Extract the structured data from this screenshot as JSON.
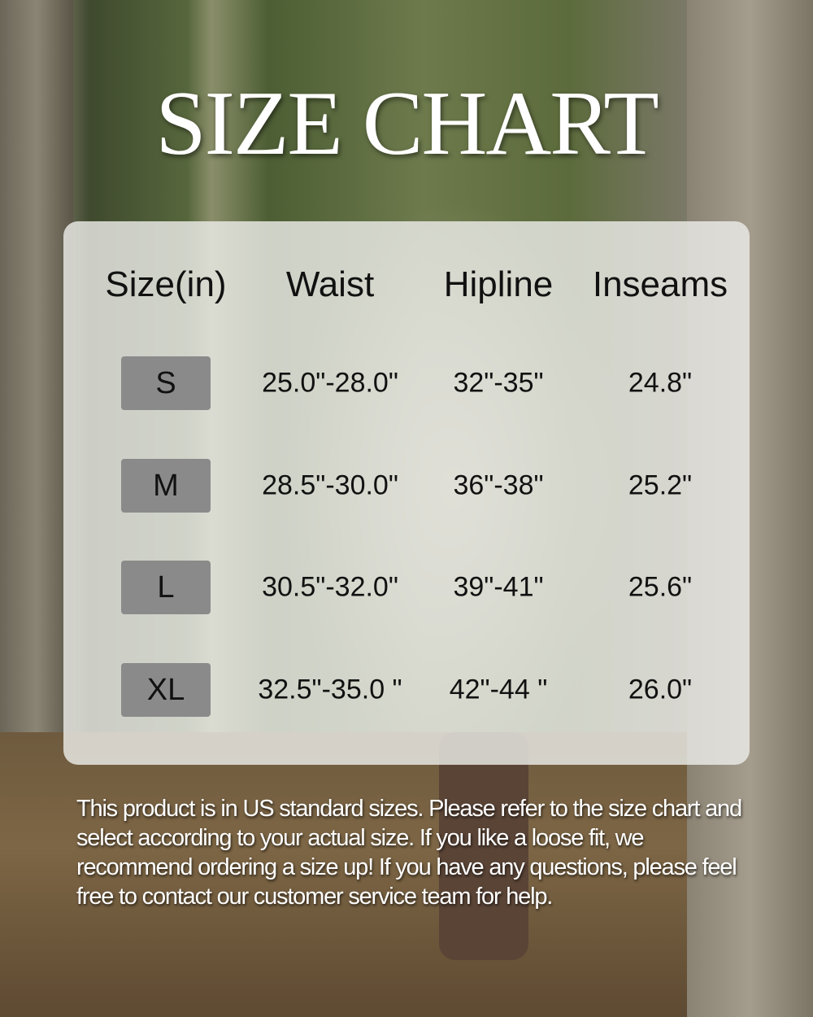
{
  "title": "SIZE CHART",
  "table": {
    "headers": [
      "Size(in)",
      "Waist",
      "Hipline",
      "Inseams"
    ],
    "rows": [
      {
        "size": "S",
        "waist": "25.0\"-28.0\"",
        "hipline": "32\"-35\"",
        "inseam": "24.8\""
      },
      {
        "size": "M",
        "waist": "28.5\"-30.0\"",
        "hipline": "36\"-38\"",
        "inseam": "25.2\""
      },
      {
        "size": "L",
        "waist": "30.5\"-32.0\"",
        "hipline": "39\"-41\"",
        "inseam": "25.6\""
      },
      {
        "size": "XL",
        "waist": "32.5\"-35.0 \"",
        "hipline": "42\"-44 \"",
        "inseam": "26.0\""
      }
    ]
  },
  "note": "This product is in US standard sizes. Please refer to the size chart and select according to your actual size. If you like a loose fit, we  recommend ordering a size up! If you have any questions, please feel free to contact our customer service team for help.",
  "colors": {
    "badge": "#8a8a8a",
    "panel": "#ececE8",
    "title": "#ffffff"
  }
}
